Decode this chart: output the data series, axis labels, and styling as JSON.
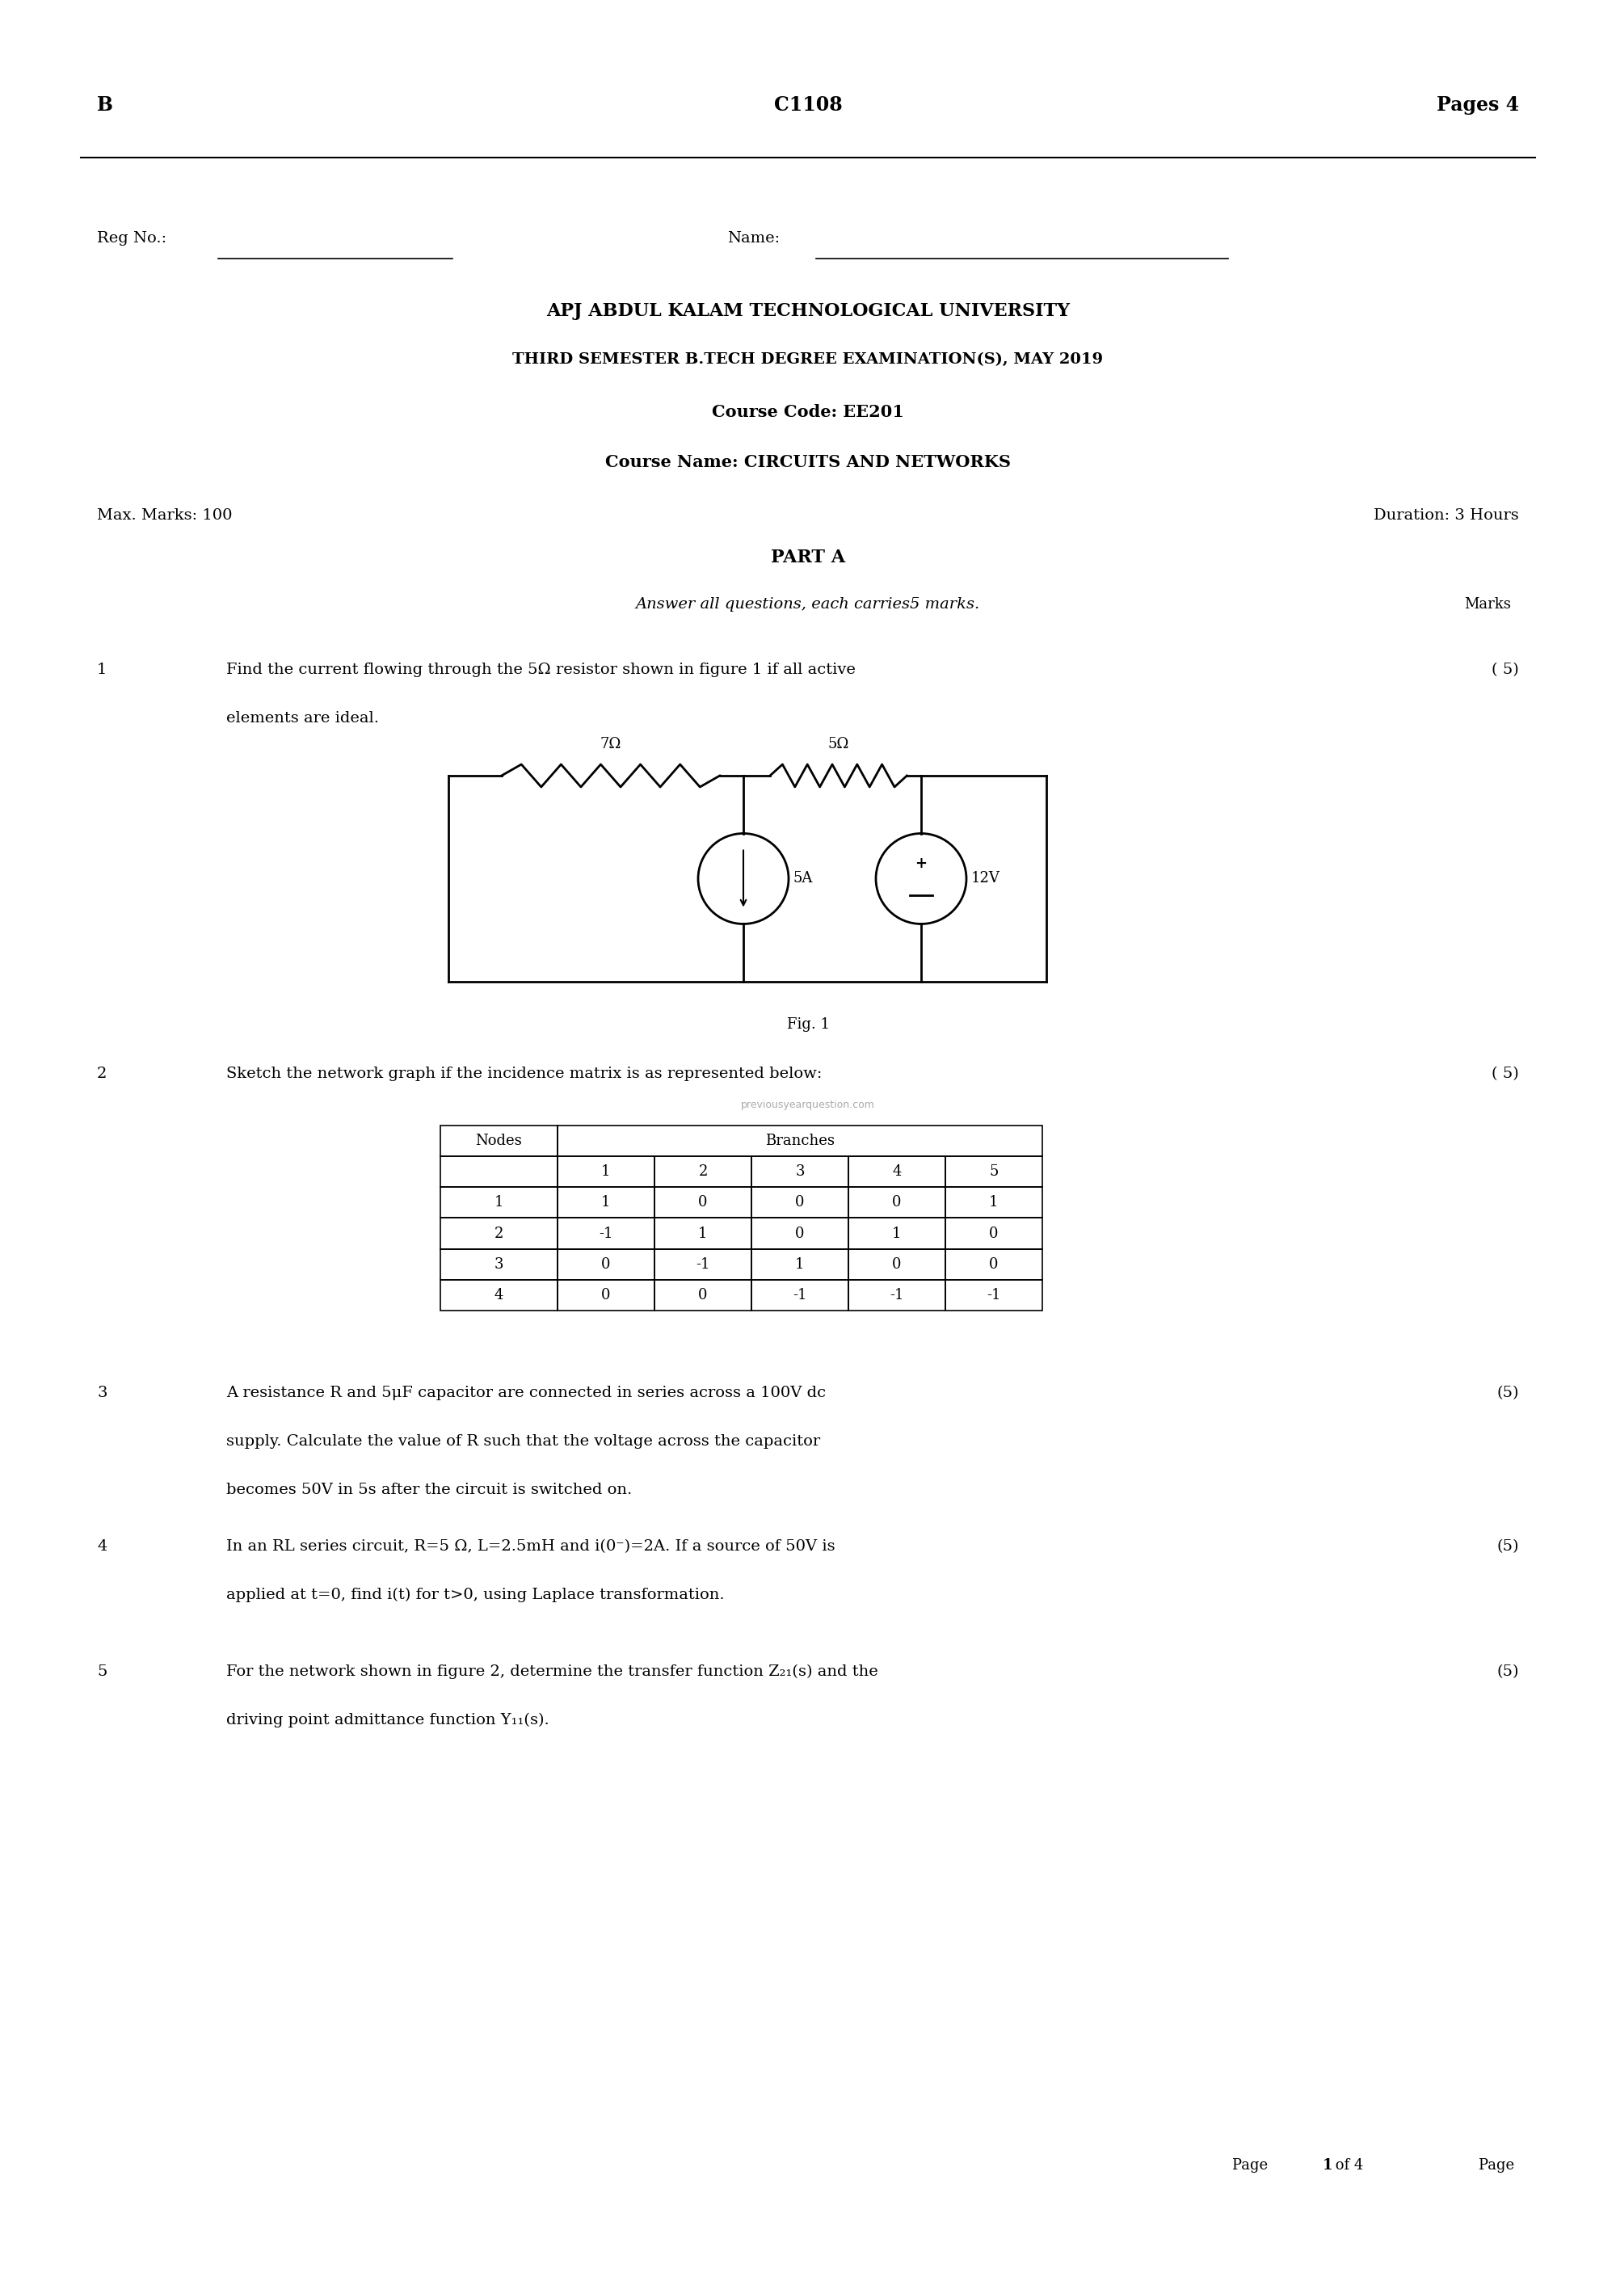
{
  "bg_color": "#ffffff",
  "text_color": "#000000",
  "page_width": 20.0,
  "page_height": 28.28,
  "header_left": "B",
  "header_center": "C1108",
  "header_right": "Pages 4",
  "reg_label": "Reg No.:",
  "name_label": "Name:",
  "university": "APJ ABDUL KALAM TECHNOLOGICAL UNIVERSITY",
  "exam_line": "THIRD SEMESTER B.TECH DEGREE EXAMINATION(S), MAY 2019",
  "course_code": "Course Code: EE201",
  "course_name": "Course Name: CIRCUITS AND NETWORKS",
  "max_marks": "Max. Marks: 100",
  "duration": "Duration: 3 Hours",
  "part_a": "PART A",
  "answer_all": "Answer all questions, each carries5 marks.",
  "marks_label": "Marks",
  "q1_num": "1",
  "q1_text1": "Find the current flowing through the 5Ω resistor shown in figure 1 if all active",
  "q1_mark": "( 5)",
  "q1_text2": "elements are ideal.",
  "fig1_label": "Fig. 1",
  "resistor1_label": "7Ω",
  "resistor2_label": "5Ω",
  "cs_label": "5A",
  "vs_label": "12V",
  "q2_num": "2",
  "q2_text": "Sketch the network graph if the incidence matrix is as represented below:",
  "q2_mark": "( 5)",
  "watermark": "previousyearquestion.com",
  "table_nodes": [
    "1",
    "2",
    "3",
    "4"
  ],
  "table_branches": [
    "1",
    "2",
    "3",
    "4",
    "5"
  ],
  "table_data": [
    [
      "1",
      "0",
      "0",
      "0",
      "1"
    ],
    [
      "-1",
      "1",
      "0",
      "1",
      "0"
    ],
    [
      "0",
      "-1",
      "1",
      "0",
      "0"
    ],
    [
      "0",
      "0",
      "-1",
      "-1",
      "-1"
    ]
  ],
  "q3_num": "3",
  "q3_text1": "A resistance R and 5μF capacitor are connected in series across a 100V dc",
  "q3_mark": "(5)",
  "q3_text2": "supply. Calculate the value of R such that the voltage across the capacitor",
  "q3_text3": "becomes 50V in 5s after the circuit is switched on.",
  "q4_num": "4",
  "q4_text1": "In an RL series circuit, R=5 Ω, L=2.5mH and i(0⁻)=2A. If a source of 50V is",
  "q4_mark": "(5)",
  "q4_text2": "applied at t=0, find i(t) for t>0, using Laplace transformation.",
  "q5_num": "5",
  "q5_text1": "For the network shown in figure 2, determine the transfer function Z₂₁(s) and the",
  "q5_mark": "(5)",
  "q5_text2": "driving point admittance function Y₁₁(s).",
  "footer_normal": "Page ",
  "footer_bold": "1",
  "footer_end": " of 4"
}
